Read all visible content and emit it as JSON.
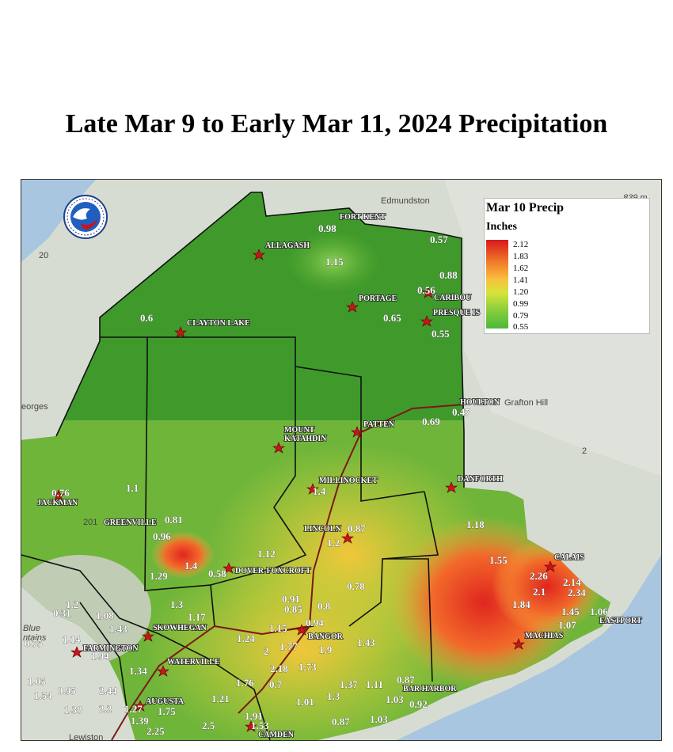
{
  "title": "Late Mar 9 to Early Mar 11, 2024 Precipitation",
  "legend": {
    "title": "Mar 10 Precip",
    "units": "Inches",
    "ticks": [
      "2.12",
      "1.83",
      "1.62",
      "1.41",
      "1.20",
      "0.99",
      "0.79",
      "0.55"
    ],
    "colors": {
      "high": "#d7191c",
      "mid": "#f9c23c",
      "low": "#4cb83a"
    }
  },
  "basemap_labels": [
    "Edmundston",
    "839 m",
    "20",
    "201",
    "2",
    "eorges",
    "Grafton Hill",
    "Blue",
    "ntains",
    "Lewiston"
  ],
  "cities": [
    "FORT KENT",
    "ALLAGASH",
    "PORTAGE",
    "CARIBOU",
    "PRESQUE IS",
    "CLAYTON LAKE",
    "HOULTON",
    "PATTEN",
    "MOUNT",
    "KATAHDIN",
    "MILLINOCKET",
    "DANFORTH",
    "JACKMAN",
    "GREENVILLE",
    "LINCOLN",
    "DOVER-FOXCROFT",
    "CALAIS",
    "SKOWHEGAN",
    "BANGOR",
    "EASTPORT",
    "MACHIAS",
    "FARMINGTON",
    "WATERVILLE",
    "BAR HARBOR",
    "AUGUSTA",
    "CAMDEN"
  ],
  "values": [
    "0.98",
    "0.57",
    "1.15",
    "0.88",
    "0.56",
    "0.6",
    "0.65",
    "0.55",
    "0.47",
    "0.69",
    "0.76",
    "1.1",
    "1.4",
    "0.81",
    "0.96",
    "0.87",
    "1.2",
    "1.18",
    "1.4",
    "1.12",
    "0.58",
    "1.29",
    "1.55",
    "2.26",
    "2.14",
    "2.1",
    "2.34",
    "1.84",
    "0.91",
    "0.85",
    "0.8",
    "0.78",
    "1.45",
    "1.06",
    "1.07",
    "1.3",
    "1.08",
    "1.17",
    "0.31",
    "1.43",
    "1.15",
    "0.94",
    "1.24",
    "0.75",
    "1.14",
    "1.94",
    "2",
    "1.77",
    "1.9",
    "1.43",
    "1.34",
    "2.18",
    "1.73",
    "1.76",
    "0.7",
    "1.05",
    "1.54",
    "0.95",
    "2.44",
    "1.37",
    "1.11",
    "0.87",
    "1.3",
    "1.03",
    "0.92",
    "1.01",
    "1.38",
    "2.2",
    "1.27",
    "1.75",
    "1.21",
    "1.39",
    "1.91",
    "2.25",
    "2.5",
    "1.53",
    "0.87",
    "1.03",
    "1.2"
  ]
}
